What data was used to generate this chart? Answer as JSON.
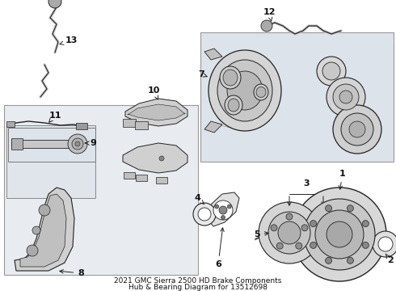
{
  "title_line1": "2021 GMC Sierra 2500 HD Brake Components",
  "title_line2": "Hub & Bearing Diagram for 13512698",
  "bg_color": "#ffffff",
  "fig_width": 4.9,
  "fig_height": 3.6,
  "dpi": 100,
  "lc": "#222222",
  "panel_bg": "#e8ecf0",
  "caliper_bg": "#dde3ea"
}
